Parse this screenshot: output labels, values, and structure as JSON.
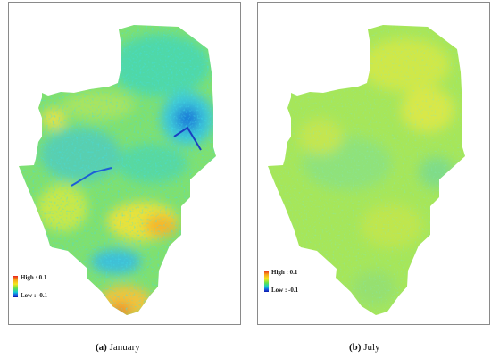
{
  "panels": [
    {
      "caption_letter": "(a)",
      "caption_month": "January",
      "legend_high": "High : 0.1",
      "legend_low": "Low : -0.1"
    },
    {
      "caption_letter": "(b)",
      "caption_month": "July",
      "legend_high": "High : 0.1",
      "legend_low": "Low : -0.1"
    }
  ],
  "colors": {
    "ramp_high": "#e8201c",
    "ramp_mid": "#f5e61e",
    "ramp_low": "#0d1aa8",
    "frame": "#8a8a8a"
  }
}
